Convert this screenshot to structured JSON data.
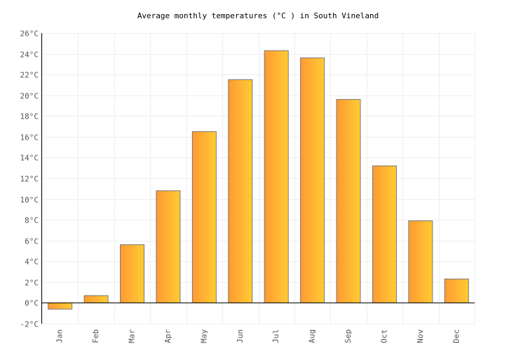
{
  "chart_data": {
    "type": "bar",
    "title": "Average monthly temperatures (°C ) in South Vineland",
    "xlabel": "",
    "ylabel": "",
    "categories": [
      "Jan",
      "Feb",
      "Mar",
      "Apr",
      "May",
      "Jun",
      "Jul",
      "Aug",
      "Sep",
      "Oct",
      "Nov",
      "Dec"
    ],
    "values": [
      -0.6,
      0.7,
      5.6,
      10.8,
      16.5,
      21.5,
      24.3,
      23.6,
      19.6,
      13.2,
      7.9,
      2.3
    ],
    "ylim": [
      -2,
      26
    ],
    "yticks": [
      "-2°C",
      "0°C",
      "2°C",
      "4°C",
      "6°C",
      "8°C",
      "10°C",
      "12°C",
      "14°C",
      "16°C",
      "18°C",
      "20°C",
      "22°C",
      "24°C",
      "26°C"
    ],
    "grid": true,
    "legend": "none",
    "colors": {
      "bar_start": "#ff9933",
      "bar_end": "#ffcc33",
      "bar_stroke": "#777777",
      "grid": "#eeeeee"
    }
  }
}
